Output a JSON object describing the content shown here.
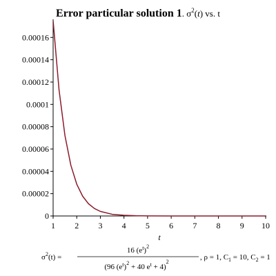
{
  "chart_data": {
    "type": "line",
    "title": [
      "Error particular solution 1",
      ". σ",
      "2",
      "(",
      "t",
      ") vs. t"
    ],
    "x_label": "t",
    "x": [
      1,
      1.25,
      1.5,
      1.75,
      2,
      2.25,
      2.5,
      2.75,
      3,
      3.5,
      4,
      4.5,
      5,
      6,
      7,
      8,
      9,
      10
    ],
    "values": [
      0.000175,
      0.000113,
      7.21e-05,
      4.55e-05,
      2.85e-05,
      1.77e-05,
      1.09e-05,
      6.7e-06,
      4.1e-06,
      1.5e-06,
      6e-07,
      2e-07,
      1e-07,
      0,
      0,
      0,
      0,
      0
    ],
    "color": "#8b1a2b",
    "xlim": [
      1,
      10
    ],
    "ylim": [
      0,
      0.000175
    ],
    "xticks": [
      1,
      2,
      3,
      4,
      5,
      6,
      7,
      8,
      9,
      10
    ],
    "yticks": [
      0,
      2e-05,
      4e-05,
      6e-05,
      8e-05,
      0.0001,
      0.00012,
      0.00014,
      0.00016
    ],
    "caption": {
      "lhs": [
        "σ",
        "2",
        "(t) ="
      ],
      "numerator": [
        "16 (e",
        "t",
        ")",
        "2"
      ],
      "denominator": [
        "(96 (e",
        "t",
        ")",
        "2",
        " + 40 e",
        "t",
        " + 4)",
        "2"
      ],
      "params": [
        ", ρ = 1, C",
        "1",
        " = 10, C",
        "2",
        " = 1"
      ]
    }
  }
}
